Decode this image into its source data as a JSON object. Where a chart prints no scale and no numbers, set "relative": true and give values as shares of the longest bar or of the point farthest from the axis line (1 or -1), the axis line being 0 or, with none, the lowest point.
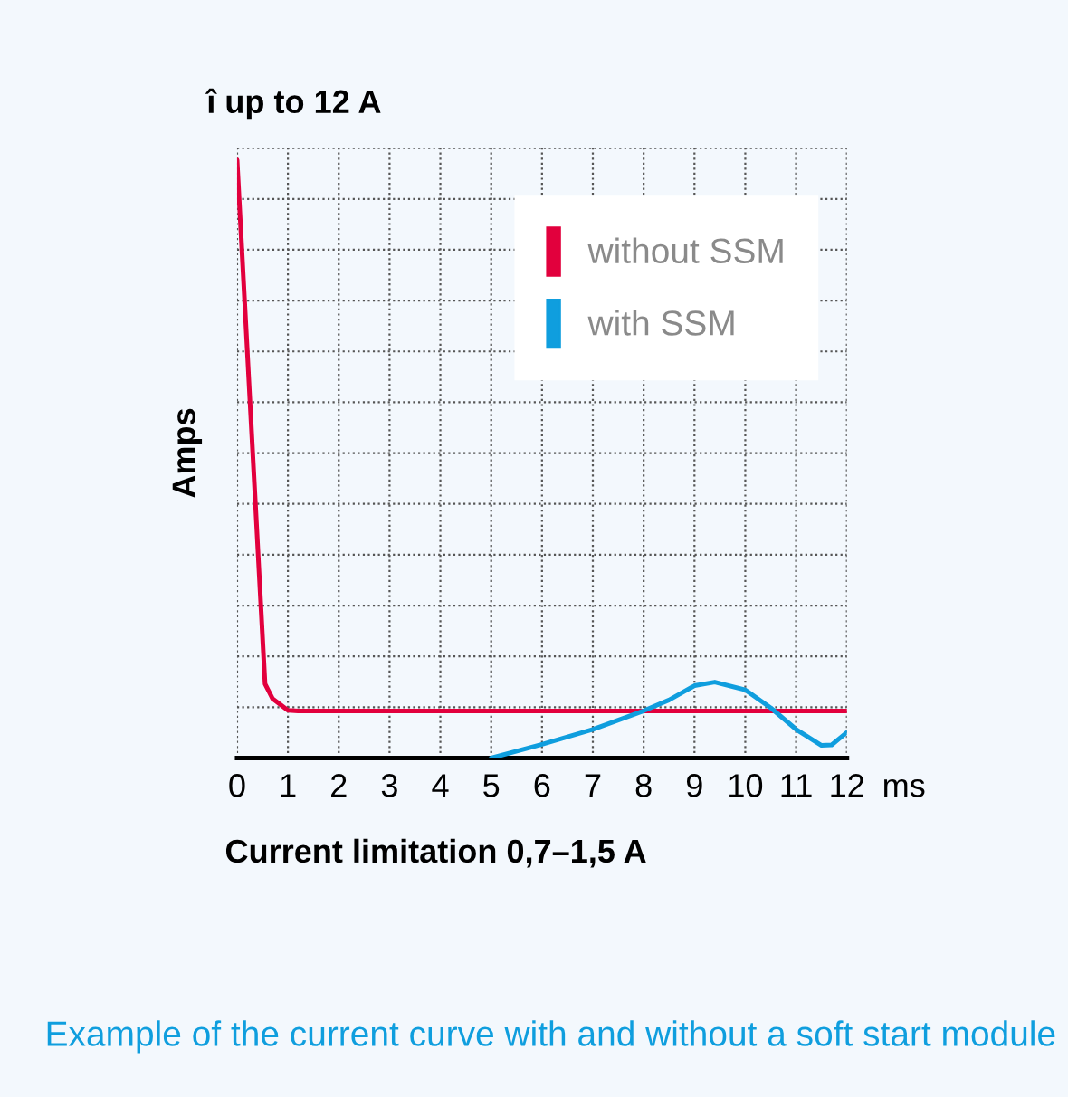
{
  "chart_data": {
    "type": "line",
    "title": "î up to 12 A",
    "ylabel": "Amps",
    "xlabel": "Current limitation 0,7–1,5 A",
    "relative": true,
    "annotations": [
      "ms",
      "Example of the current curve with and without a soft start module"
    ],
    "xlim": [
      0,
      12
    ],
    "xticks": [
      0,
      1,
      2,
      3,
      4,
      5,
      6,
      7,
      8,
      9,
      10,
      11,
      12
    ],
    "grid": true,
    "legend": "top right",
    "line_style": "solid",
    "marker": "none",
    "series": [
      {
        "name": "without SSM",
        "color": "#e2003d",
        "x": [
          0,
          0.55,
          0.7,
          1,
          1.2,
          12
        ],
        "values": [
          1,
          0.124,
          0.099,
          0.08,
          0.0786,
          0.0786
        ]
      },
      {
        "name": "with SSM",
        "color": "#0f9ede",
        "x": [
          5,
          6,
          7,
          8,
          8.5,
          9,
          9.4,
          10,
          10.5,
          11,
          11.5,
          11.7,
          12
        ],
        "values": [
          0,
          0.023,
          0.048,
          0.079,
          0.097,
          0.121,
          0.127,
          0.114,
          0.084,
          0.048,
          0.021,
          0.022,
          0.043
        ]
      }
    ]
  }
}
